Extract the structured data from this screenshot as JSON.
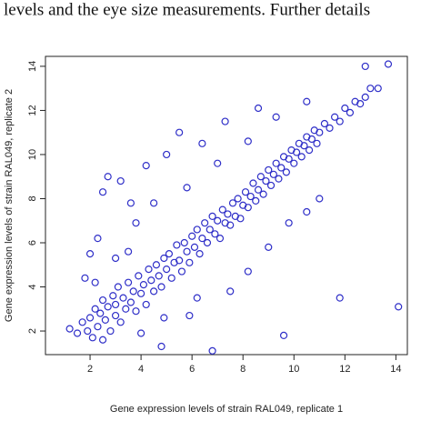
{
  "caption_fragment": "levels and the eye size measurements. Further details",
  "chart_data": {
    "type": "scatter",
    "xlabel": "Gene expression levels of strain RAL049, replicate 1",
    "ylabel": "Gene expression levels of strain RAL049, replicate 2",
    "color": "#2f2fc8",
    "xlim": [
      0.25,
      14.45
    ],
    "ylim": [
      0.93,
      14.45
    ],
    "xticks": [
      2,
      4,
      6,
      8,
      10,
      12,
      14
    ],
    "yticks": [
      2,
      4,
      6,
      8,
      10,
      12,
      14
    ],
    "x": [
      1.2,
      1.5,
      1.7,
      1.9,
      2.0,
      2.1,
      2.2,
      2.3,
      2.4,
      2.5,
      2.5,
      2.6,
      2.7,
      2.8,
      2.9,
      3.0,
      3.0,
      3.1,
      3.2,
      3.3,
      3.4,
      3.5,
      3.6,
      3.7,
      3.8,
      3.9,
      4.0,
      4.1,
      4.2,
      4.3,
      4.4,
      4.5,
      4.6,
      4.7,
      4.8,
      4.9,
      5.0,
      5.1,
      5.2,
      5.3,
      5.4,
      5.5,
      5.6,
      5.7,
      5.8,
      5.9,
      6.0,
      6.1,
      6.2,
      6.3,
      6.4,
      6.5,
      6.6,
      6.7,
      6.8,
      6.9,
      7.0,
      7.1,
      7.2,
      7.3,
      7.4,
      7.5,
      7.6,
      7.7,
      7.8,
      7.9,
      8.0,
      8.1,
      8.2,
      8.3,
      8.4,
      8.5,
      8.6,
      8.7,
      8.8,
      8.9,
      9.0,
      9.1,
      9.2,
      9.3,
      9.4,
      9.5,
      9.6,
      9.7,
      9.8,
      9.9,
      10.0,
      10.1,
      10.2,
      10.3,
      10.4,
      10.5,
      10.6,
      10.7,
      10.8,
      10.9,
      11.0,
      11.2,
      11.4,
      11.6,
      11.8,
      12.0,
      12.2,
      12.4,
      12.6,
      12.8,
      13.0,
      13.3,
      13.7,
      14.1,
      11.8,
      9.6,
      6.8,
      4.8,
      2.5,
      2.7,
      3.2,
      3.6,
      2.3,
      1.8,
      2.0,
      4.2,
      5.0,
      5.5,
      7.3,
      8.6,
      6.4,
      3.8,
      4.5,
      5.8,
      7.0,
      8.2,
      9.3,
      10.5,
      12.8,
      5.9,
      7.5,
      8.2,
      9.0,
      9.8,
      10.5,
      11.0,
      6.2,
      4.0,
      3.0,
      2.2,
      4.9,
      3.5
    ],
    "values": [
      2.1,
      1.9,
      2.4,
      2.0,
      2.6,
      1.7,
      3.0,
      2.2,
      2.8,
      1.6,
      3.4,
      2.5,
      3.1,
      2.0,
      3.6,
      2.7,
      3.2,
      4.0,
      2.4,
      3.5,
      3.0,
      4.2,
      3.3,
      3.8,
      2.9,
      4.5,
      3.7,
      4.1,
      3.2,
      4.8,
      4.3,
      3.8,
      5.0,
      4.5,
      4.0,
      5.3,
      4.8,
      5.5,
      4.4,
      5.1,
      5.9,
      5.2,
      4.7,
      6.0,
      5.6,
      5.1,
      6.3,
      5.8,
      6.6,
      5.5,
      6.2,
      6.9,
      6.0,
      6.6,
      7.2,
      6.4,
      7.0,
      6.2,
      7.5,
      6.9,
      7.3,
      6.8,
      7.8,
      7.2,
      8.0,
      7.1,
      7.7,
      8.3,
      7.6,
      8.1,
      8.7,
      7.9,
      8.4,
      9.0,
      8.2,
      8.8,
      9.3,
      8.6,
      9.1,
      9.6,
      8.9,
      9.4,
      9.9,
      9.2,
      9.8,
      10.2,
      9.6,
      10.1,
      10.5,
      9.9,
      10.4,
      10.8,
      10.2,
      10.7,
      11.1,
      10.5,
      11.0,
      11.4,
      11.2,
      11.7,
      11.5,
      12.1,
      11.9,
      12.4,
      12.3,
      12.6,
      13.0,
      13.0,
      14.1,
      3.1,
      3.5,
      1.8,
      1.1,
      1.3,
      8.3,
      9.0,
      8.8,
      7.8,
      6.2,
      4.4,
      5.5,
      9.5,
      10.0,
      11.0,
      11.5,
      12.1,
      10.5,
      6.9,
      7.8,
      8.5,
      9.6,
      10.6,
      11.7,
      12.4,
      14.0,
      2.7,
      3.8,
      4.7,
      5.8,
      6.9,
      7.4,
      8.0,
      3.5,
      1.9,
      5.3,
      4.2,
      2.6,
      5.6
    ]
  }
}
